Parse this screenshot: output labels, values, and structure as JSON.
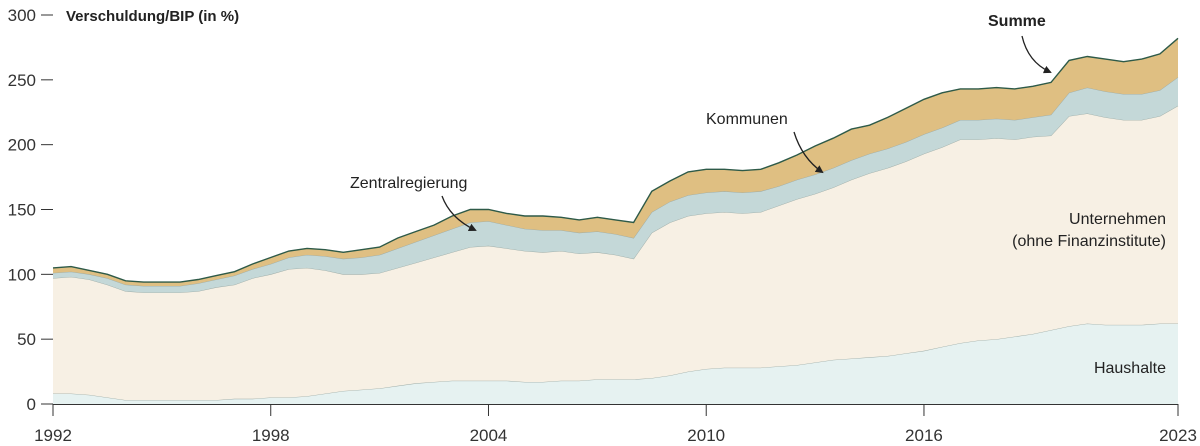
{
  "chart_data": {
    "type": "area",
    "stacked": true,
    "ylabel": "Verschuldung/BIP (in %)",
    "ylim": [
      0,
      300
    ],
    "yticks": [
      0,
      50,
      100,
      150,
      200,
      250,
      300
    ],
    "xlim": [
      1992.0,
      2023.0
    ],
    "xticks": [
      1992,
      1998,
      2004,
      2010,
      2016,
      2023
    ],
    "grid": false,
    "x": [
      1992.0,
      1992.5,
      1993.0,
      1993.5,
      1994.0,
      1994.5,
      1995.0,
      1995.5,
      1996.0,
      1996.5,
      1997.0,
      1997.5,
      1998.0,
      1998.5,
      1999.0,
      1999.5,
      2000.0,
      2000.5,
      2001.0,
      2001.5,
      2002.0,
      2002.5,
      2003.0,
      2003.5,
      2004.0,
      2004.5,
      2005.0,
      2005.5,
      2006.0,
      2006.5,
      2007.0,
      2007.5,
      2008.0,
      2008.5,
      2009.0,
      2009.5,
      2010.0,
      2010.5,
      2011.0,
      2011.5,
      2012.0,
      2012.5,
      2013.0,
      2013.5,
      2014.0,
      2014.5,
      2015.0,
      2015.5,
      2016.0,
      2016.5,
      2017.0,
      2017.5,
      2018.0,
      2018.5,
      2019.0,
      2019.5,
      2020.0,
      2020.5,
      2021.0,
      2021.5,
      2022.0,
      2022.5,
      2023.0
    ],
    "series": [
      {
        "name": "Haushalte",
        "color": "#e6f2f1",
        "values": [
          8,
          8,
          7,
          5,
          3,
          3,
          3,
          3,
          3,
          3,
          4,
          4,
          5,
          5,
          6,
          8,
          10,
          11,
          12,
          14,
          16,
          17,
          18,
          18,
          18,
          18,
          17,
          17,
          18,
          18,
          19,
          19,
          19,
          20,
          22,
          25,
          27,
          28,
          28,
          28,
          29,
          30,
          32,
          34,
          35,
          36,
          37,
          39,
          41,
          44,
          47,
          49,
          50,
          52,
          54,
          57,
          60,
          62,
          61,
          61,
          61,
          62,
          62
        ]
      },
      {
        "name": "Unternehmen (ohne Finanzinstitute)",
        "color": "#f7f0e4",
        "values": [
          89,
          90,
          89,
          87,
          84,
          83,
          83,
          83,
          84,
          87,
          88,
          93,
          95,
          99,
          99,
          95,
          90,
          89,
          89,
          91,
          93,
          96,
          99,
          103,
          104,
          102,
          101,
          100,
          100,
          98,
          98,
          96,
          93,
          112,
          118,
          120,
          120,
          120,
          119,
          120,
          124,
          128,
          130,
          133,
          138,
          142,
          145,
          148,
          152,
          154,
          157,
          155,
          155,
          152,
          152,
          150,
          162,
          162,
          160,
          158,
          158,
          160,
          168
        ]
      },
      {
        "name": "Zentralregierung",
        "color": "#c4d8d8",
        "values": [
          4,
          4,
          4,
          5,
          5,
          5,
          5,
          5,
          6,
          6,
          7,
          7,
          8,
          9,
          10,
          11,
          12,
          13,
          14,
          15,
          16,
          17,
          18,
          19,
          19,
          18,
          17,
          17,
          16,
          16,
          16,
          16,
          16,
          16,
          16,
          16,
          16,
          16,
          16,
          16,
          15,
          15,
          15,
          15,
          15,
          15,
          15,
          15,
          15,
          15,
          15,
          15,
          15,
          15,
          15,
          16,
          18,
          20,
          20,
          20,
          20,
          20,
          22
        ]
      },
      {
        "name": "Kommunen",
        "color": "#dfbf82",
        "values": [
          4,
          4,
          3,
          3,
          3,
          3,
          3,
          3,
          3,
          3,
          3,
          4,
          5,
          5,
          5,
          5,
          5,
          6,
          6,
          8,
          8,
          8,
          10,
          10,
          9,
          9,
          10,
          11,
          10,
          10,
          11,
          11,
          12,
          16,
          16,
          18,
          18,
          17,
          17,
          17,
          18,
          19,
          22,
          23,
          24,
          22,
          24,
          26,
          27,
          27,
          24,
          24,
          24,
          24,
          24,
          25,
          25,
          24,
          25,
          25,
          27,
          28,
          30
        ]
      }
    ],
    "total_label": "Summe",
    "total_line_color": "#2e5a48"
  },
  "annotations": {
    "zentralregierung": "Zentralregierung",
    "kommunen": "Kommunen",
    "summe": "Summe",
    "unternehmen_line1": "Unternehmen",
    "unternehmen_line2": "(ohne Finanzinstitute)",
    "haushalte": "Haushalte"
  }
}
